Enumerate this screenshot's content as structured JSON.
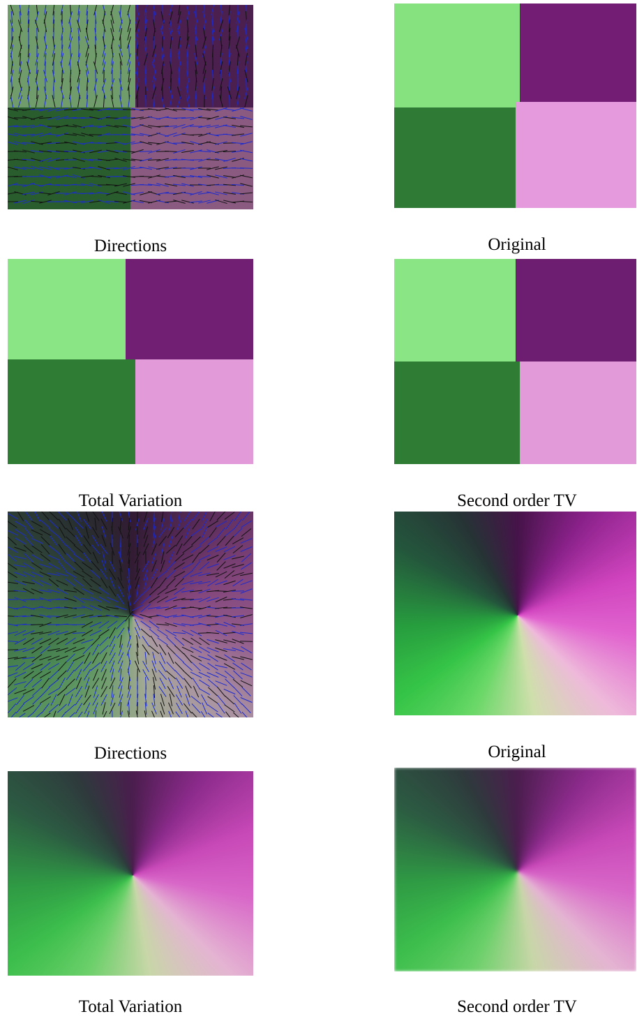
{
  "figure": {
    "panels": [
      {
        "caption": "Directions"
      },
      {
        "caption": "Original"
      },
      {
        "caption": "Total Variation"
      },
      {
        "caption": "Second order TV"
      },
      {
        "caption": "Directions"
      },
      {
        "caption": "Original"
      },
      {
        "caption": "Total Variation"
      },
      {
        "caption": "Second order TV"
      }
    ]
  }
}
